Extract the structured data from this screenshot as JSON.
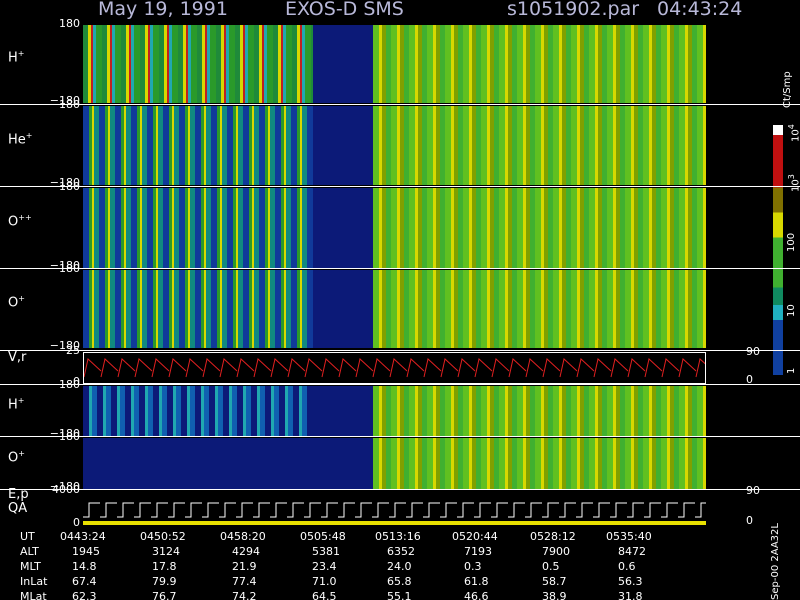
{
  "header": {
    "date": "May 19, 1991",
    "instrument": "EXOS-D SMS",
    "file": "s1051902.par",
    "time": "04:43:24"
  },
  "panels": [
    {
      "label": "H",
      "sup": "+",
      "ticks": [
        "180",
        "−180"
      ]
    },
    {
      "label": "He",
      "sup": "+",
      "ticks": [
        "180",
        "−180"
      ]
    },
    {
      "label": "O",
      "sup": "++",
      "ticks": [
        "180",
        "−180"
      ]
    },
    {
      "label": "O",
      "sup": "+",
      "ticks": [
        "180",
        "−180"
      ]
    },
    {
      "label": "V,r",
      "ticks": [
        "25",
        "0"
      ],
      "right_ticks": [
        "90",
        "0"
      ]
    },
    {
      "label": "H",
      "sup": "+",
      "ticks": [
        "180",
        "−180"
      ]
    },
    {
      "label": "O",
      "sup": "+",
      "ticks": [
        "180",
        "−180"
      ]
    },
    {
      "label": "E,p",
      "label2": "QA",
      "ticks": [
        "4000",
        "0"
      ],
      "right_ticks": [
        "90",
        "0"
      ]
    }
  ],
  "colorbar": {
    "unit": "Ct/Smp",
    "labels": [
      {
        "base": "10",
        "sup": "4"
      },
      {
        "base": "10",
        "sup": "3"
      },
      {
        "base": "100"
      },
      {
        "base": "10"
      },
      {
        "base": "1"
      }
    ]
  },
  "table": {
    "rows": [
      [
        "UT",
        "0443:24",
        "0450:52",
        "0458:20",
        "0505:48",
        "0513:16",
        "0520:44",
        "0528:12",
        "0535:40"
      ],
      [
        "ALT",
        "1945",
        "3124",
        "4294",
        "5381",
        "6352",
        "7193",
        "7900",
        "8472"
      ],
      [
        "MLT",
        "14.8",
        "17.8",
        "21.9",
        "23.4",
        "24.0",
        "0.3",
        "0.5",
        "0.6"
      ],
      [
        "InLat",
        "67.4",
        "79.9",
        "77.4",
        "71.0",
        "65.8",
        "61.8",
        "58.7",
        "56.3"
      ],
      [
        "MLat",
        "62.3",
        "76.7",
        "74.2",
        "64.5",
        "55.1",
        "46.6",
        "38.9",
        "31.8"
      ]
    ]
  },
  "footer": "Sep-00 2AA32L"
}
